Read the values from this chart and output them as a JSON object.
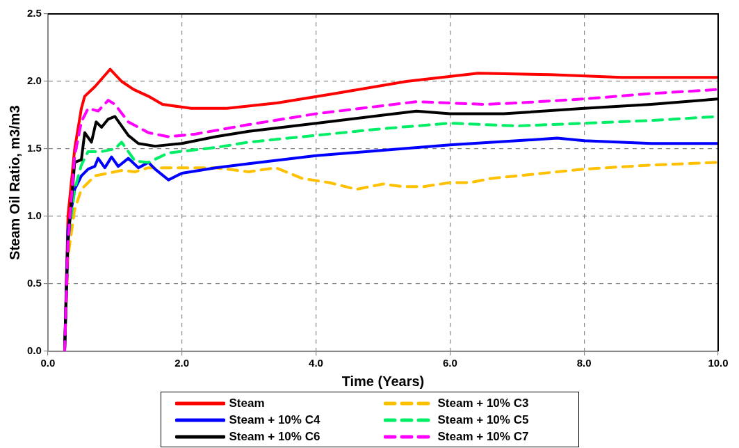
{
  "chart_data": {
    "type": "line",
    "xlabel": "Time (Years)",
    "ylabel": "Steam Oil Ratio, m3/m3",
    "xlim": [
      0,
      10
    ],
    "ylim": [
      0,
      2.5
    ],
    "xticks": [
      {
        "value": 0,
        "label": "0.0"
      },
      {
        "value": 2,
        "label": "2.0"
      },
      {
        "value": 4,
        "label": "4.0"
      },
      {
        "value": 6,
        "label": "6.0"
      },
      {
        "value": 8,
        "label": "8.0"
      },
      {
        "value": 10,
        "label": "10.0"
      }
    ],
    "yticks": [
      {
        "value": 0,
        "label": "0.0"
      },
      {
        "value": 0.5,
        "label": "0.5"
      },
      {
        "value": 1,
        "label": "1.0"
      },
      {
        "value": 1.5,
        "label": "1.5"
      },
      {
        "value": 2,
        "label": "2.0"
      },
      {
        "value": 2.5,
        "label": "2.5"
      }
    ],
    "grid": true,
    "legend": "bottom",
    "marker": "none",
    "series": [
      {
        "name": "Steam",
        "color": "#ff0000",
        "line_style": "solid",
        "x": [
          0.25,
          0.3,
          0.4,
          0.5,
          0.55,
          0.7,
          0.93,
          1.1,
          1.28,
          1.5,
          1.71,
          2.14,
          2.67,
          3.42,
          4.28,
          5.35,
          6.42,
          7.49,
          8.56,
          10
        ],
        "values": [
          0,
          1.0,
          1.5,
          1.8,
          1.89,
          1.96,
          2.09,
          2.0,
          1.94,
          1.89,
          1.83,
          1.8,
          1.8,
          1.84,
          1.91,
          2.0,
          2.06,
          2.05,
          2.03,
          2.03
        ]
      },
      {
        "name": "Steam + 10% C3",
        "color": "#ffc000",
        "line_style": "dashed",
        "x": [
          0.25,
          0.3,
          0.4,
          0.5,
          0.7,
          0.9,
          1.1,
          1.3,
          1.5,
          1.8,
          2.0,
          2.5,
          3.0,
          3.4,
          3.8,
          4.2,
          4.6,
          5.0,
          5.3,
          5.6,
          6.0,
          6.3,
          6.6,
          7.0,
          8.0,
          9.0,
          10
        ],
        "values": [
          0,
          0.7,
          1.05,
          1.2,
          1.3,
          1.32,
          1.34,
          1.33,
          1.36,
          1.36,
          1.36,
          1.36,
          1.33,
          1.36,
          1.28,
          1.25,
          1.2,
          1.24,
          1.22,
          1.22,
          1.25,
          1.25,
          1.28,
          1.3,
          1.35,
          1.38,
          1.4
        ]
      },
      {
        "name": "Steam + 10% C4",
        "color": "#0000ff",
        "line_style": "solid",
        "x": [
          0.25,
          0.3,
          0.4,
          0.5,
          0.6,
          0.7,
          0.75,
          0.85,
          0.95,
          1.05,
          1.2,
          1.35,
          1.5,
          1.6,
          1.8,
          2.0,
          2.5,
          3.0,
          4.0,
          5.0,
          6.0,
          7.0,
          7.6,
          8.0,
          9.0,
          10
        ],
        "values": [
          0,
          0.9,
          1.2,
          1.3,
          1.35,
          1.37,
          1.43,
          1.36,
          1.44,
          1.37,
          1.43,
          1.36,
          1.4,
          1.35,
          1.27,
          1.32,
          1.36,
          1.39,
          1.45,
          1.49,
          1.53,
          1.56,
          1.58,
          1.56,
          1.54,
          1.54
        ]
      },
      {
        "name": "Steam + 10% C5",
        "color": "#00ee66",
        "line_style": "dashed",
        "x": [
          0.25,
          0.3,
          0.4,
          0.5,
          0.6,
          0.8,
          1.0,
          1.1,
          1.3,
          1.5,
          1.8,
          2.5,
          3.0,
          4.0,
          5.0,
          6.0,
          7.0,
          8.0,
          9.0,
          10
        ],
        "values": [
          0,
          0.8,
          1.2,
          1.38,
          1.48,
          1.48,
          1.5,
          1.55,
          1.41,
          1.4,
          1.47,
          1.51,
          1.55,
          1.6,
          1.65,
          1.69,
          1.67,
          1.69,
          1.71,
          1.74
        ]
      },
      {
        "name": "Steam + 10% C6",
        "color": "#000000",
        "line_style": "solid",
        "x": [
          0.25,
          0.3,
          0.4,
          0.5,
          0.55,
          0.65,
          0.72,
          0.8,
          0.9,
          1.0,
          1.2,
          1.35,
          1.6,
          2.0,
          2.5,
          3.0,
          4.0,
          5.0,
          5.5,
          6.0,
          6.8,
          8.0,
          9.0,
          10
        ],
        "values": [
          0,
          0.8,
          1.4,
          1.42,
          1.62,
          1.55,
          1.7,
          1.66,
          1.72,
          1.74,
          1.6,
          1.54,
          1.52,
          1.54,
          1.59,
          1.63,
          1.69,
          1.75,
          1.78,
          1.76,
          1.76,
          1.8,
          1.83,
          1.87
        ]
      },
      {
        "name": "Steam + 10% C7",
        "color": "#ff00ff",
        "line_style": "dashed",
        "x": [
          0.25,
          0.3,
          0.4,
          0.5,
          0.6,
          0.75,
          0.9,
          1.0,
          1.2,
          1.5,
          1.8,
          2.2,
          3.0,
          4.0,
          5.0,
          5.5,
          6.5,
          7.0,
          8.0,
          9.0,
          10
        ],
        "values": [
          0,
          0.8,
          1.45,
          1.7,
          1.8,
          1.78,
          1.86,
          1.83,
          1.7,
          1.62,
          1.59,
          1.61,
          1.68,
          1.76,
          1.82,
          1.85,
          1.83,
          1.84,
          1.87,
          1.91,
          1.94
        ]
      }
    ]
  }
}
